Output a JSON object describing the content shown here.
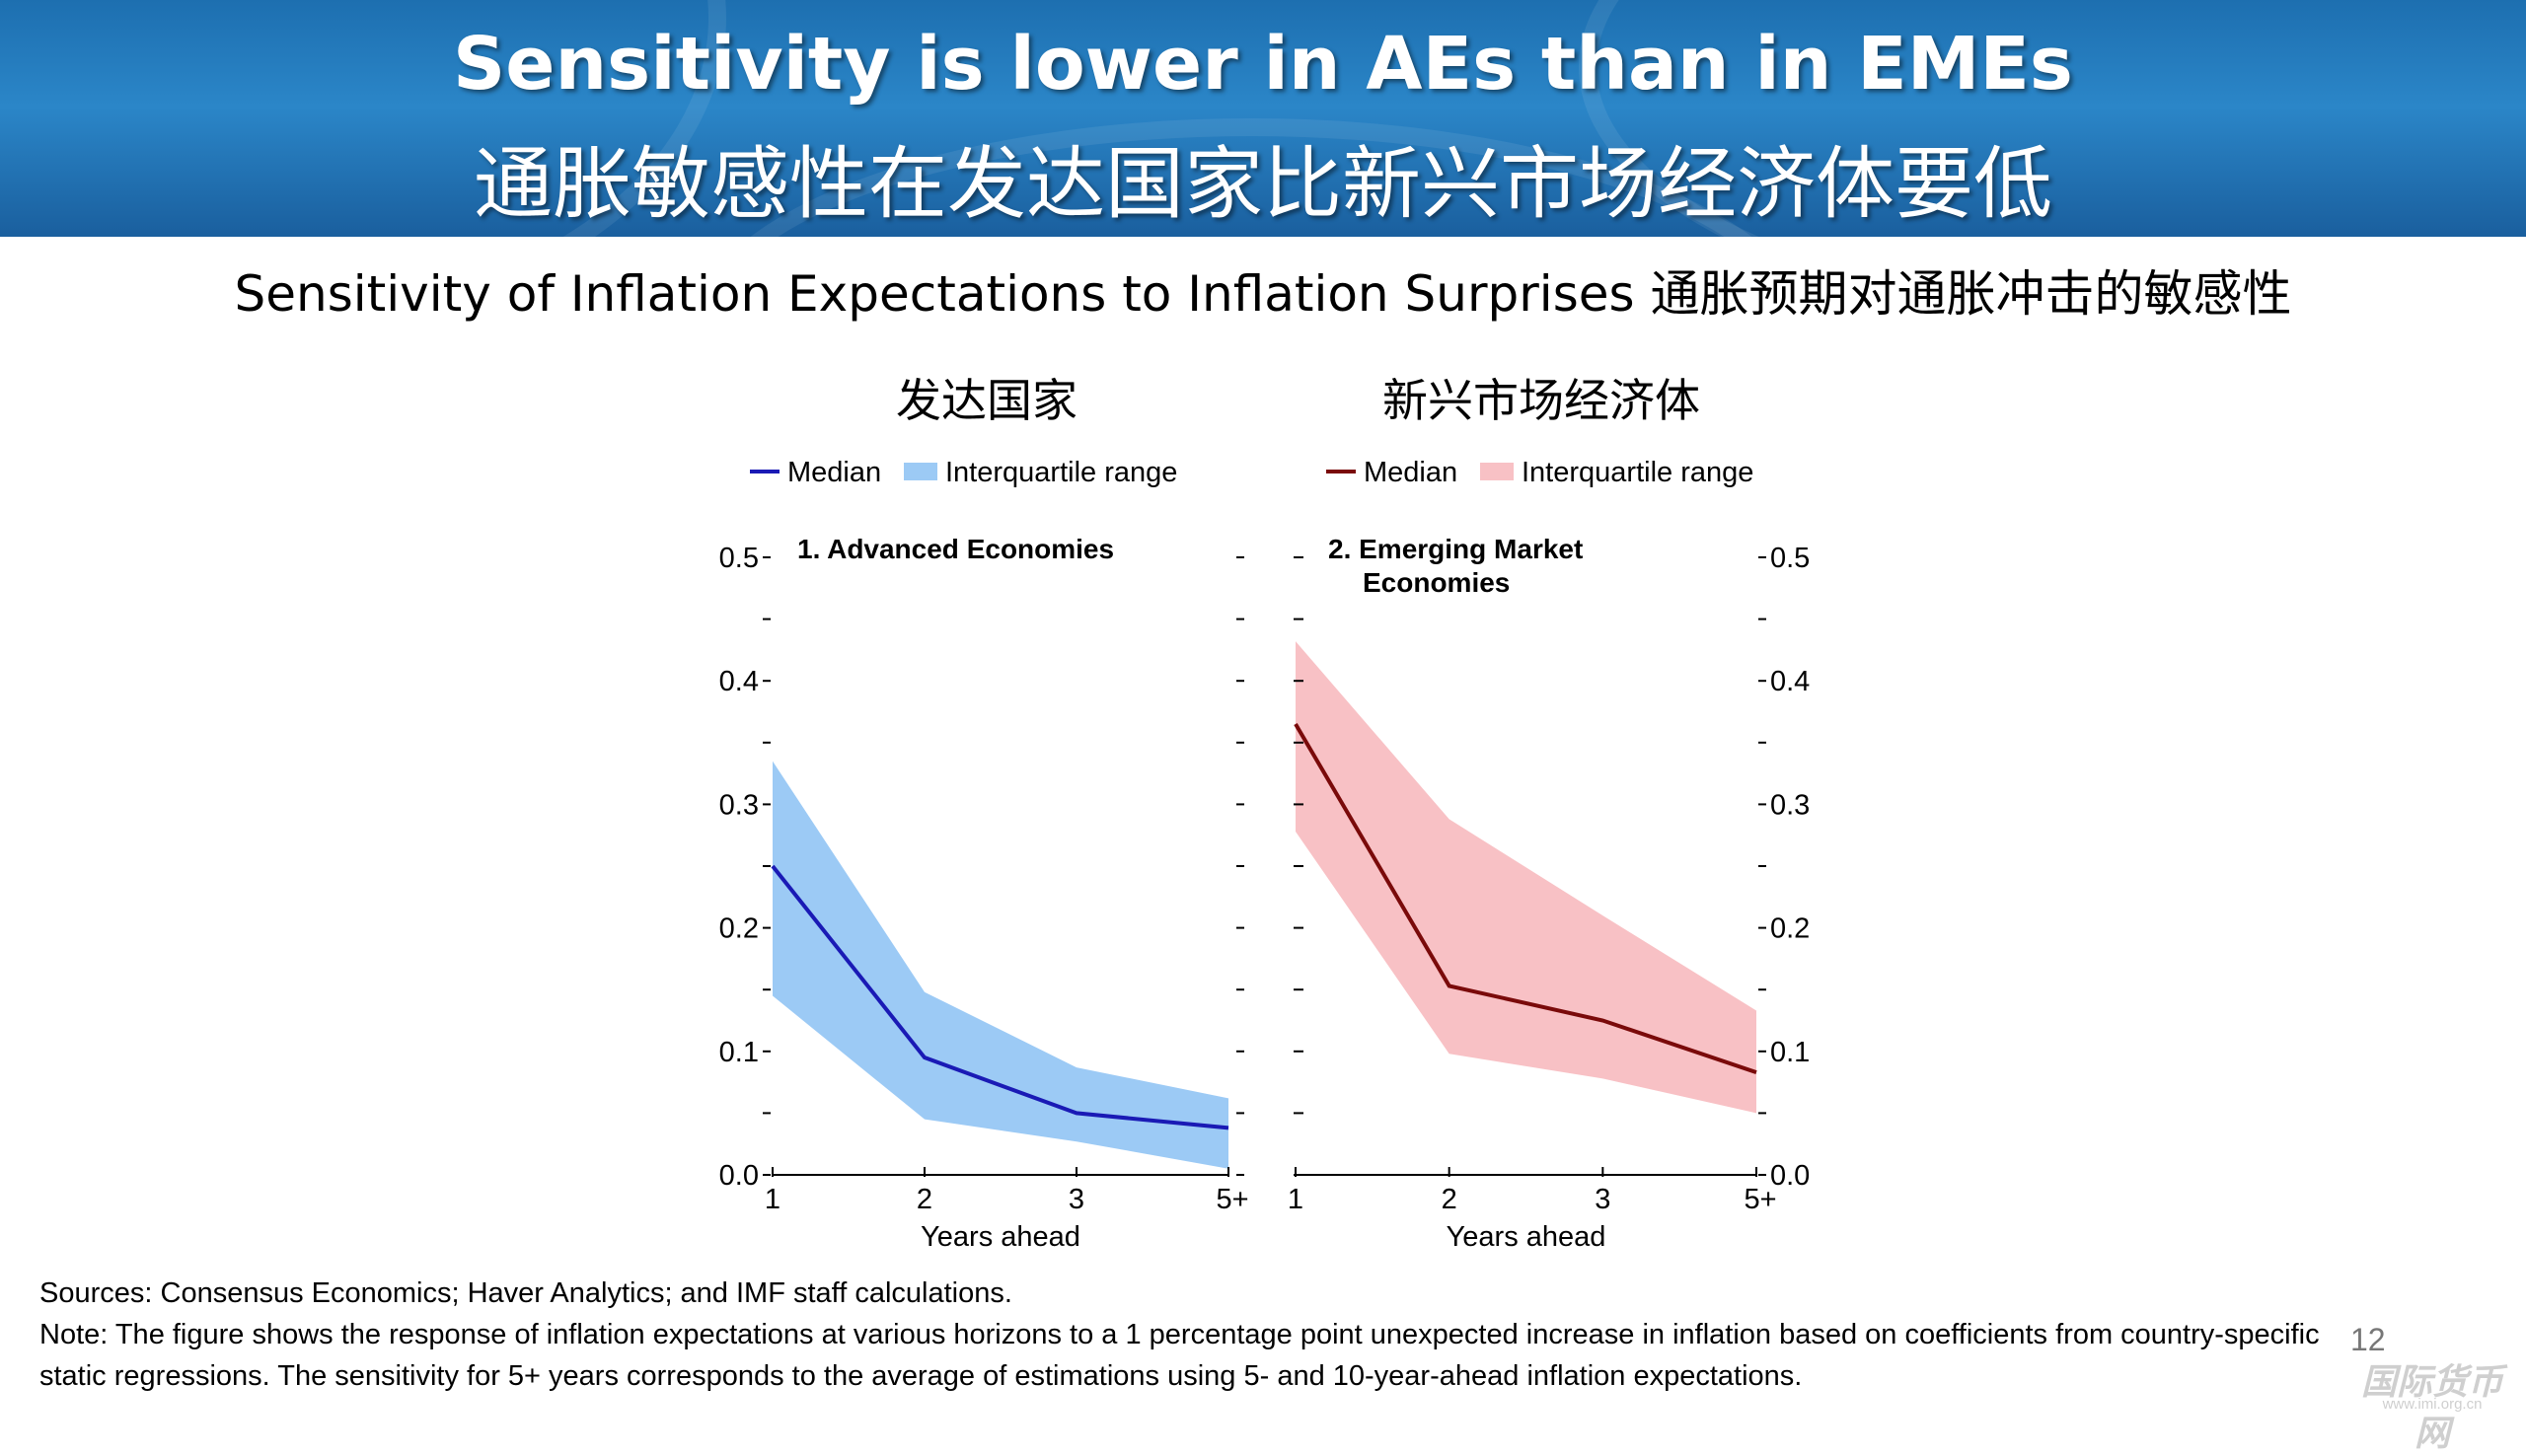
{
  "header": {
    "title_en": "Sensitivity is lower in AEs than in EMEs",
    "title_zh": "通胀敏感性在发达国家比新兴市场经济体要低"
  },
  "subtitle": "Sensitivity of Inflation Expectations to Inflation Surprises 通胀预期对通胀冲击的敏感性",
  "panels_zh": {
    "left": "发达国家",
    "right": "新兴市场经济体"
  },
  "chart_data": [
    {
      "type": "area",
      "title": "1. Advanced Economies",
      "xlabel": "Years ahead",
      "categories": [
        "1",
        "2",
        "3",
        "5+"
      ],
      "ylim": [
        0,
        0.5
      ],
      "yticks": [
        "0.0",
        "0.1",
        "0.2",
        "0.3",
        "0.4",
        "0.5"
      ],
      "legend": [
        "Median",
        "Interquartile range"
      ],
      "legend_position": "top",
      "colors": {
        "line": "#1a1ab5",
        "band": "#9ccaf5"
      },
      "series": [
        {
          "name": "Median",
          "values": [
            0.25,
            0.095,
            0.05,
            0.038
          ]
        },
        {
          "name": "Interquartile range",
          "lower": [
            0.145,
            0.045,
            0.027,
            0.005
          ],
          "upper": [
            0.335,
            0.148,
            0.087,
            0.062
          ]
        }
      ]
    },
    {
      "type": "area",
      "title": "2. Emerging Market Economies",
      "xlabel": "Years ahead",
      "categories": [
        "1",
        "2",
        "3",
        "5+"
      ],
      "ylim": [
        0,
        0.5
      ],
      "yticks": [
        "0.0",
        "0.1",
        "0.2",
        "0.3",
        "0.4",
        "0.5"
      ],
      "legend": [
        "Median",
        "Interquartile range"
      ],
      "legend_position": "top",
      "colors": {
        "line": "#7a0a0a",
        "band": "#f8c1c5"
      },
      "series": [
        {
          "name": "Median",
          "values": [
            0.365,
            0.153,
            0.125,
            0.083
          ]
        },
        {
          "name": "Interquartile range",
          "lower": [
            0.278,
            0.098,
            0.078,
            0.05
          ],
          "upper": [
            0.432,
            0.288,
            0.21,
            0.133
          ]
        }
      ]
    }
  ],
  "footer": {
    "sources": "Sources: Consensus Economics; Haver Analytics; and IMF staff calculations.",
    "note": "Note: The figure shows the response of inflation expectations at various horizons to a 1 percentage point unexpected increase in inflation based on coefficients from country-specific static regressions. The sensitivity for 5+ years corresponds to the average of estimations using 5- and 10-year-ahead inflation expectations.",
    "page_number": "12",
    "watermark": "国际货币网",
    "watermark_url": "www.imi.org.cn"
  }
}
